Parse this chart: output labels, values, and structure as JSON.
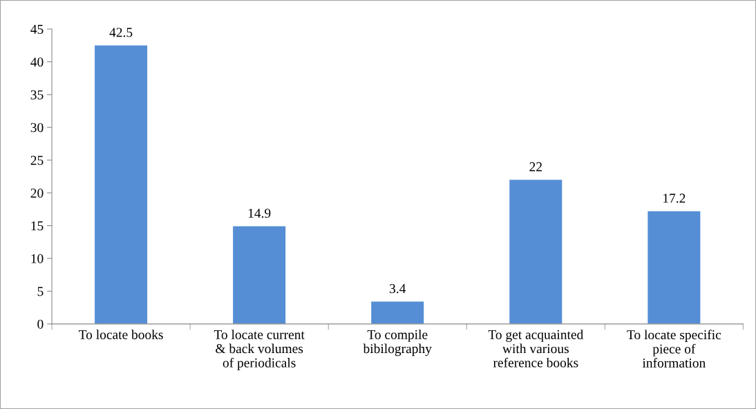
{
  "chart_data": {
    "type": "bar",
    "categories": [
      "To locate books",
      "To locate current\n& back volumes\nof periodicals",
      "To compile\nbibilography",
      "To get acquainted\nwith various\nreference books",
      "To locate specific\npiece of\ninformation"
    ],
    "values": [
      42.5,
      14.9,
      3.4,
      22,
      17.2
    ],
    "color": "#558ed5",
    "ylim": [
      0,
      45
    ],
    "yticks": [
      0,
      5,
      10,
      15,
      20,
      25,
      30,
      35,
      40,
      45
    ],
    "data_labels": true,
    "grid": false,
    "legend": false
  }
}
